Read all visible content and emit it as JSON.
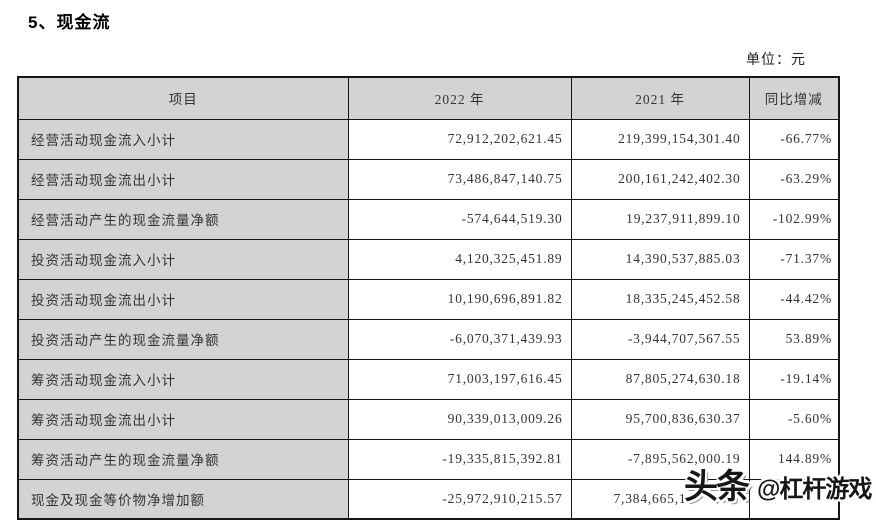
{
  "page": {
    "title": "5、现金流",
    "unit_label": "单位：元"
  },
  "table": {
    "headers": [
      "项目",
      "2022 年",
      "2021 年",
      "同比增减"
    ],
    "rows": [
      {
        "item": "经营活动现金流入小计",
        "y2022": "72,912,202,621.45",
        "y2021": "219,399,154,301.40",
        "change": "-66.77%",
        "partial": false
      },
      {
        "item": "经营活动现金流出小计",
        "y2022": "73,486,847,140.75",
        "y2021": "200,161,242,402.30",
        "change": "-63.29%",
        "partial": false
      },
      {
        "item": "经营活动产生的现金流量净额",
        "y2022": "-574,644,519.30",
        "y2021": "19,237,911,899.10",
        "change": "-102.99%",
        "partial": false
      },
      {
        "item": "投资活动现金流入小计",
        "y2022": "4,120,325,451.89",
        "y2021": "14,390,537,885.03",
        "change": "-71.37%",
        "partial": false
      },
      {
        "item": "投资活动现金流出小计",
        "y2022": "10,190,696,891.82",
        "y2021": "18,335,245,452.58",
        "change": "-44.42%",
        "partial": false
      },
      {
        "item": "投资活动产生的现金流量净额",
        "y2022": "-6,070,371,439.93",
        "y2021": "-3,944,707,567.55",
        "change": "53.89%",
        "partial": false
      },
      {
        "item": "筹资活动现金流入小计",
        "y2022": "71,003,197,616.45",
        "y2021": "87,805,274,630.18",
        "change": "-19.14%",
        "partial": false
      },
      {
        "item": "筹资活动现金流出小计",
        "y2022": "90,339,013,009.26",
        "y2021": "95,700,836,630.37",
        "change": "-5.60%",
        "partial": false
      },
      {
        "item": "筹资活动产生的现金流量净额",
        "y2022": "-19,335,815,392.81",
        "y2021": "-7,895,562,000.19",
        "change": "144.89%",
        "partial": false
      },
      {
        "item": "现金及现金等价物净增加额",
        "y2022": "-25,972,910,215.57",
        "y2021": "7,384,665,1",
        "change": "",
        "partial": true
      }
    ]
  },
  "watermark": {
    "brand": "头条",
    "account": "@杠杆游戏"
  },
  "colors": {
    "cell_shade": "#d3d3d3",
    "border": "#161616",
    "text": "#333333"
  }
}
